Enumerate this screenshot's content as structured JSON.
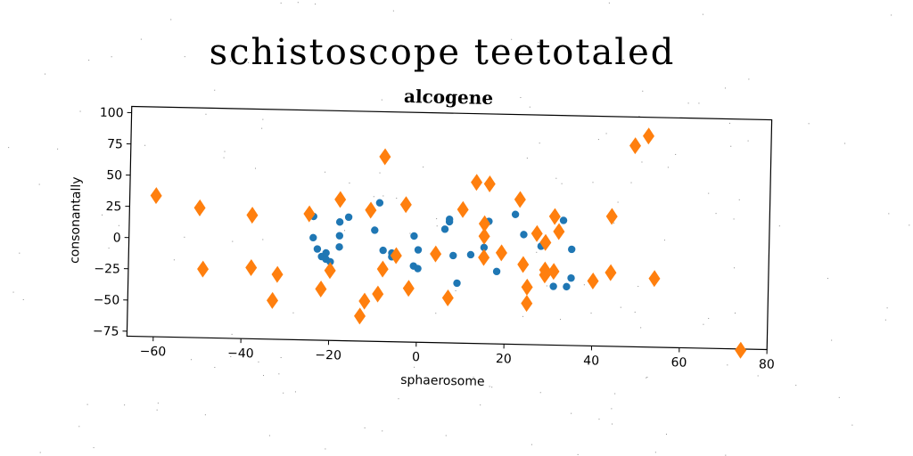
{
  "figure": {
    "suptitle": "schistoscope teetotaled"
  },
  "chart_data": {
    "type": "scatter",
    "title": "alcogene",
    "xlabel": "sphaerosome",
    "ylabel": "consonantally",
    "xlim": [
      -66,
      80
    ],
    "ylim": [
      -79,
      105
    ],
    "xticks": [
      -60,
      -40,
      -20,
      0,
      20,
      40,
      60,
      80
    ],
    "yticks": [
      -75,
      -50,
      -25,
      0,
      25,
      50,
      75,
      100
    ],
    "grid": false,
    "series": [
      {
        "marker": "circle",
        "color": "#1f77b4",
        "points": [
          [
            -24,
            20
          ],
          [
            -24,
            3
          ],
          [
            -23,
            -6
          ],
          [
            -22,
            -12
          ],
          [
            -21,
            -14
          ],
          [
            -21,
            -9
          ],
          [
            -20,
            -16
          ],
          [
            -18,
            16
          ],
          [
            -18,
            5
          ],
          [
            -18,
            -4
          ],
          [
            -16,
            20
          ],
          [
            -10,
            10
          ],
          [
            -9,
            32
          ],
          [
            -8,
            -6
          ],
          [
            -6,
            -8
          ],
          [
            -6,
            -11
          ],
          [
            -1,
            6
          ],
          [
            -1,
            -18
          ],
          [
            0,
            -5
          ],
          [
            0,
            -20
          ],
          [
            6,
            12
          ],
          [
            7,
            18
          ],
          [
            7,
            20
          ],
          [
            8,
            -9
          ],
          [
            9,
            -31
          ],
          [
            12,
            -8
          ],
          [
            15,
            -2
          ],
          [
            16,
            19
          ],
          [
            18,
            -21
          ],
          [
            22,
            25
          ],
          [
            24,
            9
          ],
          [
            28,
            0
          ],
          [
            29,
            2
          ],
          [
            31,
            -32
          ],
          [
            33,
            21
          ],
          [
            34,
            -32
          ],
          [
            35,
            -2
          ],
          [
            35,
            -25
          ]
        ]
      },
      {
        "marker": "thin_diamond",
        "color": "#ff7f0e",
        "points": [
          [
            -60,
            34
          ],
          [
            -50,
            25
          ],
          [
            -49,
            -24
          ],
          [
            -38,
            20
          ],
          [
            -38,
            -22
          ],
          [
            -32,
            -27
          ],
          [
            -33,
            -48
          ],
          [
            -25,
            22
          ],
          [
            -22,
            -38
          ],
          [
            -20,
            -23
          ],
          [
            -18,
            34
          ],
          [
            -13,
            -59
          ],
          [
            -12,
            -47
          ],
          [
            -11,
            26
          ],
          [
            -9,
            -41
          ],
          [
            -8,
            69
          ],
          [
            -8,
            -21
          ],
          [
            -5,
            -10
          ],
          [
            -3,
            31
          ],
          [
            -2,
            -36
          ],
          [
            4,
            -8
          ],
          [
            7,
            -43
          ],
          [
            10,
            28
          ],
          [
            13,
            50
          ],
          [
            15,
            17
          ],
          [
            15,
            7
          ],
          [
            15,
            -10
          ],
          [
            16,
            49
          ],
          [
            19,
            -6
          ],
          [
            23,
            37
          ],
          [
            24,
            -15
          ],
          [
            25,
            -33
          ],
          [
            25,
            -46
          ],
          [
            27,
            10
          ],
          [
            29,
            3
          ],
          [
            29,
            -19
          ],
          [
            29,
            -23
          ],
          [
            31,
            -20
          ],
          [
            31,
            24
          ],
          [
            32,
            12
          ],
          [
            40,
            -27
          ],
          [
            44,
            25
          ],
          [
            44,
            -20
          ],
          [
            49,
            82
          ],
          [
            52,
            90
          ],
          [
            54,
            -24
          ],
          [
            74,
            -80
          ]
        ]
      }
    ]
  }
}
